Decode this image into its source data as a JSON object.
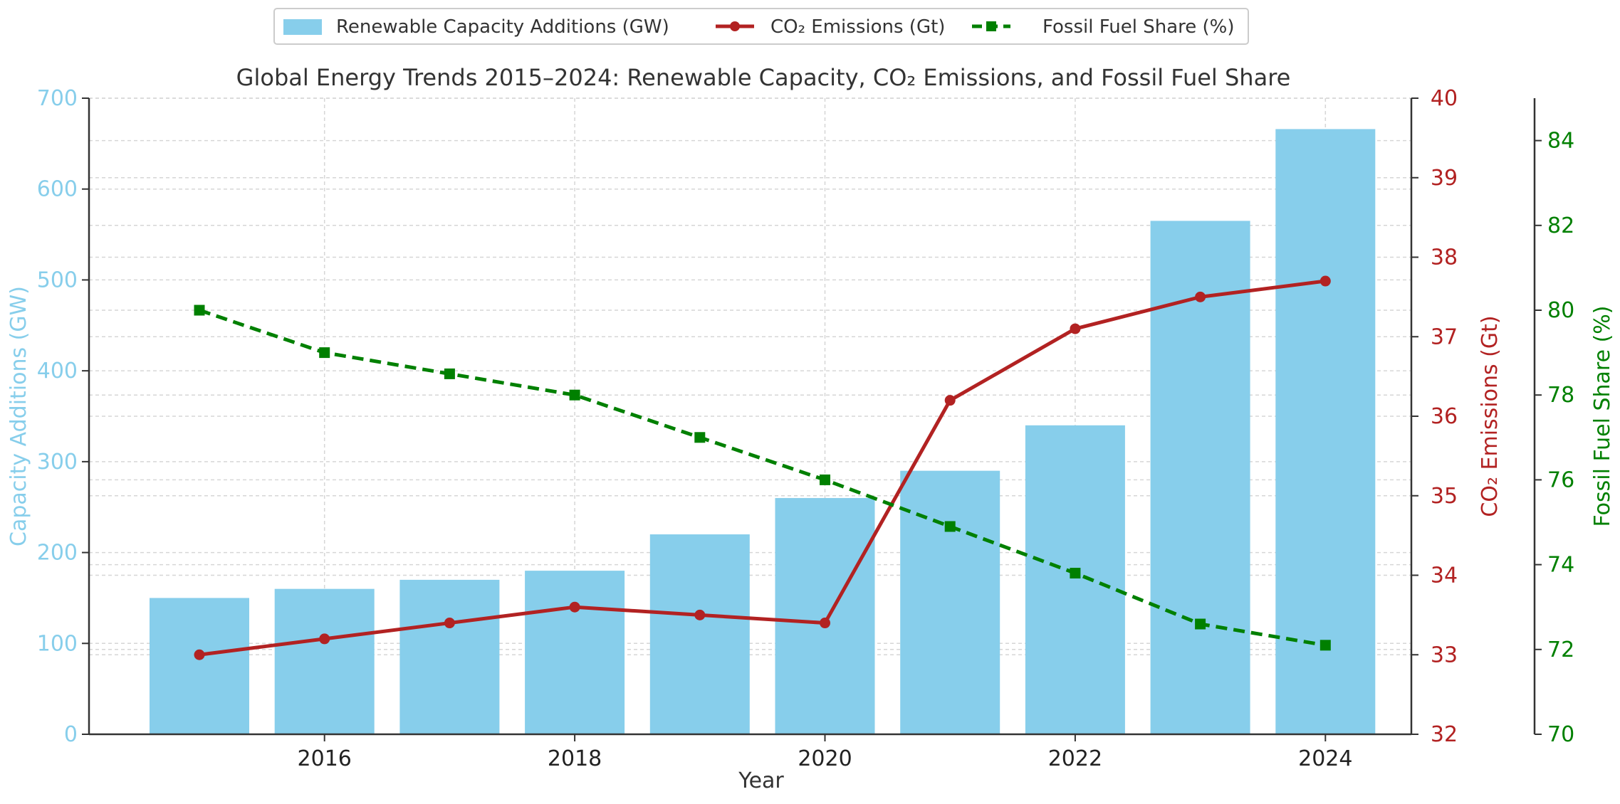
{
  "chart_data": {
    "type": "bar+line",
    "title": "Global Energy Trends 2015–2024: Renewable Capacity, CO₂ Emissions, and Fossil Fuel Share",
    "xlabel": "Year",
    "x": [
      2015,
      2016,
      2017,
      2018,
      2019,
      2020,
      2021,
      2022,
      2023,
      2024
    ],
    "x_ticks": [
      "2016",
      "2018",
      "2020",
      "2022",
      "2024"
    ],
    "series": [
      {
        "name": "Renewable Capacity Additions (GW)",
        "kind": "bar",
        "axis": "left",
        "color": "#87CEEB",
        "values": [
          150,
          160,
          170,
          180,
          220,
          260,
          290,
          340,
          565,
          666
        ]
      },
      {
        "name": "CO₂ Emissions (Gt)",
        "kind": "line",
        "marker": "circle",
        "axis": "right1",
        "color": "#B22222",
        "values": [
          33.0,
          33.2,
          33.4,
          33.6,
          33.5,
          33.4,
          36.2,
          37.1,
          37.5,
          37.7
        ]
      },
      {
        "name": "Fossil Fuel Share (%)",
        "kind": "line",
        "dashed": true,
        "marker": "square",
        "axis": "right2",
        "color": "#008000",
        "values": [
          80.0,
          79.0,
          78.5,
          78.0,
          77.0,
          76.0,
          74.9,
          73.8,
          72.6,
          72.1
        ]
      }
    ],
    "axes": {
      "left": {
        "label": "Capacity Additions (GW)",
        "ylim": [
          0,
          700
        ],
        "ticks": [
          0,
          100,
          200,
          300,
          400,
          500,
          600,
          700
        ],
        "color": "#87CEEB"
      },
      "right1": {
        "label": "CO₂ Emissions (Gt)",
        "ylim": [
          32,
          40
        ],
        "ticks": [
          32,
          33,
          34,
          35,
          36,
          37,
          38,
          39,
          40
        ],
        "color": "#B22222"
      },
      "right2": {
        "label": "Fossil Fuel Share (%)",
        "ylim": [
          70,
          85
        ],
        "ticks": [
          70,
          72,
          74,
          76,
          78,
          80,
          82,
          84
        ],
        "color": "#008000"
      }
    },
    "grid": true,
    "legend": "top-center"
  }
}
